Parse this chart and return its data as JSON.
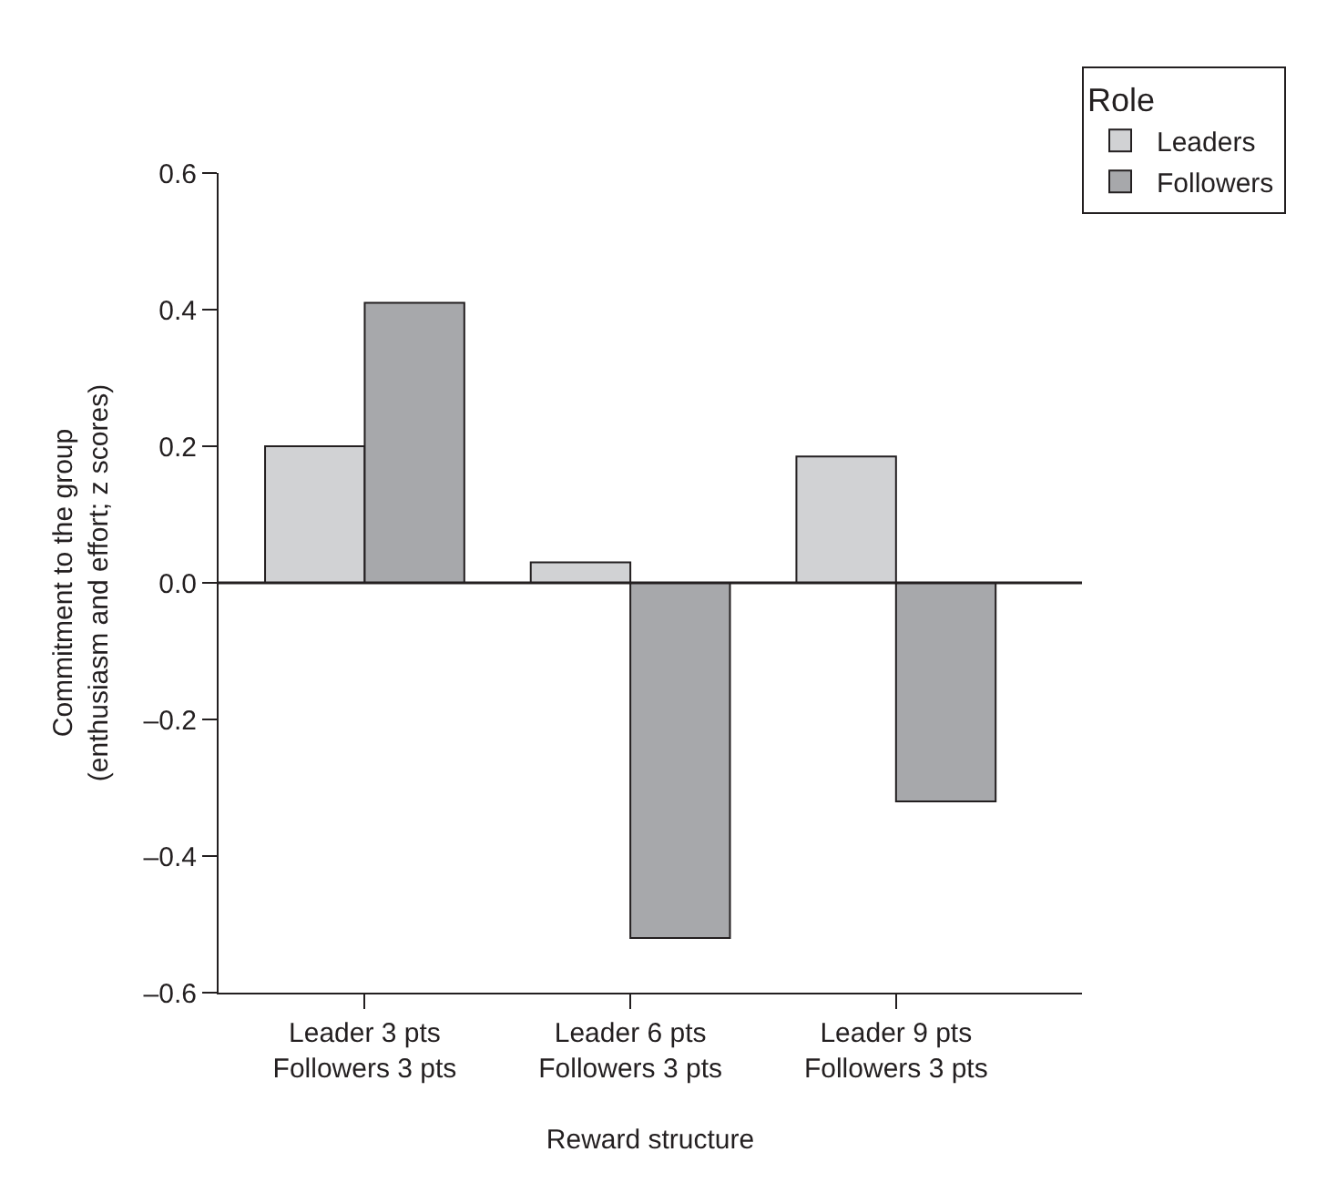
{
  "chart_data": {
    "type": "bar",
    "xlabel": "Reward structure",
    "ylabel": "Commitment to the group\n(enthusiasm and effort; z scores)",
    "legend_title": "Role",
    "categories": [
      "Leader 3 pts\nFollowers 3 pts",
      "Leader 6 pts\nFollowers 3 pts",
      "Leader 9 pts\nFollowers 3 pts"
    ],
    "series": [
      {
        "name": "Leaders",
        "color": "#d1d2d4",
        "values": [
          0.2,
          0.03,
          0.185
        ]
      },
      {
        "name": "Followers",
        "color": "#a7a8ab",
        "values": [
          0.41,
          -0.52,
          -0.32
        ]
      }
    ],
    "ylim": [
      -0.6,
      0.6
    ],
    "yticks": [
      {
        "value": -0.6,
        "label": "–0.6"
      },
      {
        "value": -0.4,
        "label": "–0.4"
      },
      {
        "value": -0.2,
        "label": "–0.2"
      },
      {
        "value": 0,
        "label": "0.0"
      },
      {
        "value": 0.2,
        "label": "0.2"
      },
      {
        "value": 0.4,
        "label": "0.4"
      },
      {
        "value": 0.6,
        "label": "0.6"
      }
    ],
    "ref_lines": [
      {
        "axis": "y",
        "value": 0
      }
    ],
    "legend": "top right"
  }
}
